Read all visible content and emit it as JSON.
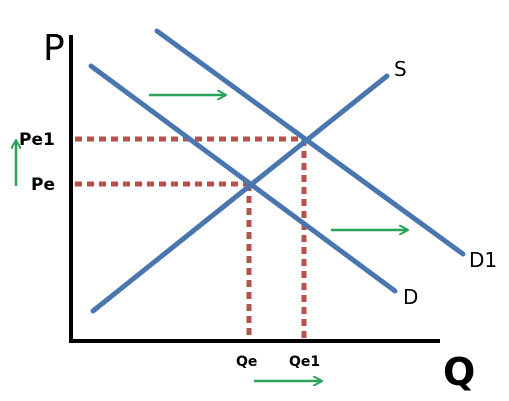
{
  "axes": {
    "y_label": "P",
    "x_label": "Q"
  },
  "curves": {
    "supply_label": "S",
    "demand_label": "D",
    "demand_shifted_label": "D1"
  },
  "ticks": {
    "price_initial": "Pe",
    "price_new": "Pe1",
    "quantity_initial": "Qe",
    "quantity_new": "Qe1"
  },
  "shift": {
    "direction": "demand shifts right",
    "price_change": "increase",
    "quantity_change": "increase"
  },
  "colors": {
    "curve": "#4a76b0",
    "guide": "#b5524c",
    "shift_arrow": "#2aa35a",
    "axis": "#000000"
  }
}
